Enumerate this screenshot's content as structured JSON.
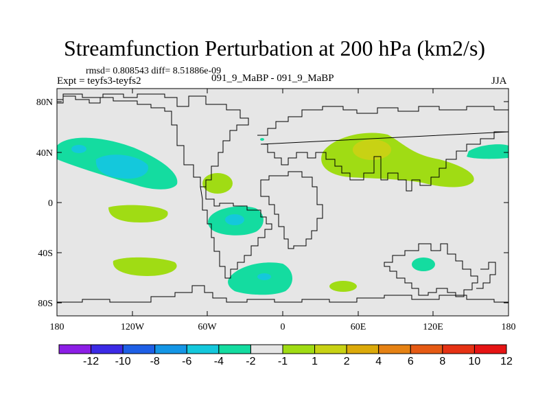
{
  "title": "Streamfunction Perturbation at 200 hPa (km2/s)",
  "stats": "rmsd= 0.808543 diff= 8.51886e-09",
  "left_label": "Expt = teyfs3-teyfs2",
  "center_label": "091_9_MaBP - 091_9_MaBP",
  "right_label": "JJA",
  "lat_ticks": [
    "80N",
    "40N",
    "0",
    "40S",
    "80S"
  ],
  "lon_ticks": [
    "180",
    "120W",
    "60W",
    "0",
    "60E",
    "120E",
    "180"
  ],
  "colorbar": {
    "colors": [
      "#8c1ee6",
      "#3c2ae6",
      "#1e5fe6",
      "#1496e6",
      "#14c8dc",
      "#14dca0",
      "#e6e6e6",
      "#a0dc14",
      "#c8d214",
      "#dcaa0a",
      "#e68214",
      "#e65a14",
      "#e63214",
      "#e61414"
    ],
    "labels": [
      "-12",
      "-10",
      "-8",
      "-6",
      "-4",
      "-2",
      "-1",
      "1",
      "2",
      "4",
      "6",
      "8",
      "10",
      "12"
    ]
  },
  "colors": {
    "background": "#e6e6e6",
    "cyan_level": "#14c8dc",
    "green_cyan_level": "#14dca0",
    "yellow_green_level": "#a0dc14",
    "yellow_level": "#c8d214"
  }
}
